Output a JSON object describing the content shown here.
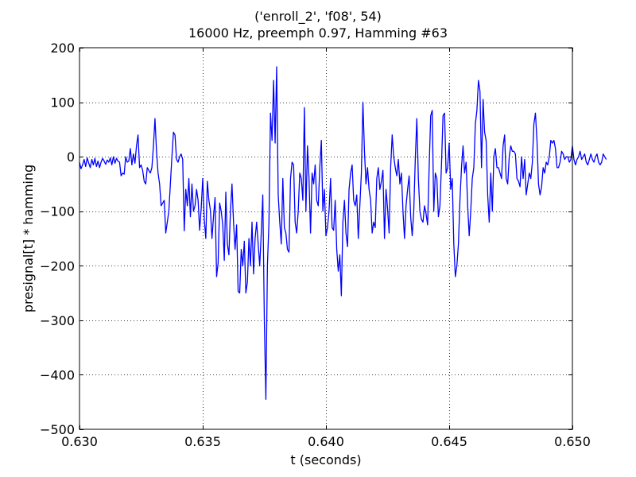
{
  "chart_data": {
    "type": "line",
    "title": "('enroll_2', 'f08', 54)",
    "subtitle": "16000 Hz, preemph 0.97, Hamming #63",
    "xlabel": "t (seconds)",
    "ylabel": "presignal[t] * hamming",
    "xlim": [
      0.63,
      0.65
    ],
    "ylim": [
      -500,
      200
    ],
    "xticks": [
      0.63,
      0.635,
      0.64,
      0.645,
      0.65
    ],
    "xtick_labels": [
      "0.630",
      "0.635",
      "0.640",
      "0.645",
      "0.650"
    ],
    "yticks": [
      -500,
      -400,
      -300,
      -200,
      -100,
      0,
      100,
      200
    ],
    "ytick_labels": [
      "−500",
      "−400",
      "−300",
      "−200",
      "−100",
      "0",
      "100",
      "200"
    ],
    "grid": true,
    "legend": "none",
    "line_color": "#0000ff",
    "series": [
      {
        "x_start": 0.63,
        "x_step": 6.25e-05,
        "values": [
          -10,
          -22,
          -15,
          -5,
          -18,
          -2,
          -12,
          -20,
          -5,
          -15,
          -3,
          -18,
          -8,
          -20,
          -10,
          -3,
          -8,
          -14,
          -6,
          -10,
          -2,
          -15,
          0,
          -12,
          -3,
          -8,
          -10,
          -35,
          -30,
          -32,
          0,
          -10,
          -8,
          15,
          -15,
          5,
          -12,
          20,
          40,
          -20,
          -15,
          -25,
          -45,
          -50,
          -20,
          -25,
          -30,
          -20,
          20,
          70,
          10,
          -30,
          -50,
          -90,
          -85,
          -80,
          -140,
          -120,
          -100,
          -50,
          0,
          45,
          40,
          -5,
          -10,
          0,
          5,
          -5,
          -136,
          -60,
          -90,
          -40,
          -110,
          -50,
          -100,
          -90,
          -60,
          -80,
          -135,
          -95,
          -40,
          -115,
          -150,
          -45,
          -80,
          -98,
          -150,
          -110,
          -75,
          -220,
          -195,
          -85,
          -100,
          -125,
          -190,
          -65,
          -160,
          -180,
          -100,
          -50,
          -120,
          -170,
          -125,
          -247,
          -250,
          -170,
          -200,
          -155,
          -250,
          -230,
          -150,
          -200,
          -120,
          -215,
          -150,
          -120,
          -160,
          -200,
          -140,
          -70,
          -300,
          -445,
          -200,
          -120,
          80,
          30,
          140,
          25,
          165,
          -70,
          -120,
          -160,
          -40,
          -130,
          -140,
          -170,
          -175,
          -40,
          -10,
          -15,
          -120,
          -140,
          -100,
          -30,
          -40,
          -80,
          90,
          -100,
          20,
          -40,
          -140,
          -30,
          -50,
          -15,
          -80,
          -90,
          -20,
          30,
          -100,
          -60,
          -145,
          -130,
          -100,
          -40,
          -130,
          -135,
          -80,
          -170,
          -210,
          -180,
          -255,
          -120,
          -80,
          -140,
          -165,
          -60,
          -30,
          -15,
          -80,
          -90,
          -70,
          -150,
          -90,
          -30,
          100,
          10,
          -50,
          -20,
          -60,
          -80,
          -140,
          -120,
          -130,
          -40,
          -20,
          -60,
          -45,
          -25,
          -150,
          -60,
          -95,
          -140,
          -20,
          40,
          0,
          -20,
          -35,
          -5,
          -50,
          -30,
          -100,
          -150,
          -90,
          -60,
          -35,
          -110,
          -145,
          -100,
          -5,
          70,
          -40,
          -100,
          -115,
          -120,
          -90,
          -105,
          -125,
          -20,
          75,
          85,
          -100,
          -30,
          -40,
          -110,
          -90,
          -15,
          75,
          80,
          -30,
          -20,
          25,
          -60,
          -40,
          -160,
          -220,
          -200,
          -160,
          -80,
          -20,
          20,
          -30,
          -10,
          -90,
          -145,
          -100,
          -40,
          -20,
          60,
          85,
          140,
          120,
          -20,
          105,
          45,
          30,
          -70,
          -120,
          -30,
          -100,
          0,
          15,
          -20,
          -20,
          -30,
          -40,
          20,
          40,
          -40,
          -50,
          0,
          20,
          10,
          10,
          5,
          -40,
          -45,
          -55,
          0,
          -40,
          -5,
          -70,
          -50,
          -30,
          -40,
          -10,
          60,
          80,
          30,
          -50,
          -70,
          -55,
          -20,
          -30,
          -10,
          -15,
          0,
          30,
          25,
          30,
          15,
          -20,
          -20,
          -10,
          10,
          5,
          -5,
          0,
          0,
          -10,
          -5,
          20,
          -5,
          -15,
          -5,
          0,
          10,
          -5,
          0,
          5,
          -10,
          -15,
          -5,
          5,
          -5,
          -10,
          0,
          5,
          -10,
          -15,
          -10,
          5,
          0,
          -5
        ]
      }
    ]
  }
}
